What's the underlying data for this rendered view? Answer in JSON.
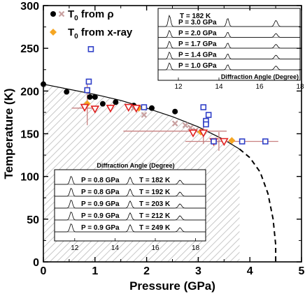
{
  "chart_data": {
    "type": "scatter",
    "xlabel": "Pressure (GPa)",
    "ylabel": "Temperature   (K)",
    "xlim": [
      0,
      5
    ],
    "ylim": [
      0,
      300
    ],
    "xticks": [
      "0",
      "1",
      "2",
      "3",
      "4",
      "5"
    ],
    "yticks": [
      "0",
      "50",
      "100",
      "150",
      "200",
      "250",
      "300"
    ],
    "legend": {
      "placement": "top-left",
      "entries": [
        {
          "label": "T",
          "sub": "0",
          "suffix": " from ρ",
          "markers": [
            "filled-circle",
            "x-cross"
          ]
        },
        {
          "label": "T",
          "sub": "0",
          "suffix": " from x-ray",
          "markers": [
            "diamond"
          ]
        }
      ]
    },
    "colors": {
      "circle": "#000000",
      "cross": "#c8a0a0",
      "diamond": "#f5a623",
      "square": "#3040c8",
      "triangle": "#e02020",
      "errorbar": "#c88080",
      "hatch": "#c8c8c8",
      "boundary": "#000000"
    },
    "series": [
      {
        "name": "T0 from rho (filled circle)",
        "marker": "circle",
        "points": [
          [
            0,
            208
          ],
          [
            0.45,
            199
          ],
          [
            0.9,
            193
          ],
          [
            1.0,
            193
          ],
          [
            1.15,
            185
          ],
          [
            1.4,
            187
          ],
          [
            1.75,
            183
          ],
          [
            2.1,
            180
          ],
          [
            2.55,
            176
          ]
        ]
      },
      {
        "name": "T0 from rho (cross)",
        "marker": "cross",
        "points": [
          [
            1.75,
            180
          ],
          [
            1.95,
            172
          ],
          [
            2.55,
            162
          ],
          [
            2.75,
            160
          ],
          [
            2.85,
            157
          ],
          [
            2.95,
            154
          ]
        ]
      },
      {
        "name": "T0 from x-ray (diamond)",
        "marker": "diamond",
        "points": [
          [
            0.85,
            185
          ],
          [
            1.85,
            180
          ],
          [
            3.05,
            152
          ],
          [
            3.65,
            142
          ]
        ]
      },
      {
        "name": "triangles",
        "marker": "triangle",
        "points": [
          [
            0.8,
            181
          ],
          [
            1.0,
            179
          ],
          [
            1.3,
            180
          ],
          [
            1.65,
            181
          ],
          [
            1.8,
            180
          ],
          [
            2.9,
            151
          ],
          [
            3.1,
            151
          ],
          [
            3.3,
            141
          ],
          [
            3.5,
            141
          ]
        ]
      },
      {
        "name": "squares",
        "marker": "square",
        "points": [
          [
            0.85,
            201
          ],
          [
            0.88,
            211
          ],
          [
            0.92,
            249
          ],
          [
            1.95,
            181
          ],
          [
            3.1,
            181
          ],
          [
            3.2,
            172
          ],
          [
            3.15,
            165
          ],
          [
            3.15,
            161
          ],
          [
            3.3,
            141
          ],
          [
            3.85,
            141
          ],
          [
            4.3,
            141
          ]
        ]
      }
    ],
    "errorbars": [
      {
        "x": 0.85,
        "y": 180,
        "xerr": [
          0.55,
          1.05
        ],
        "yerr": [
          160,
          210
        ]
      },
      {
        "x": 3.1,
        "y": 153,
        "xerr": [
          1.55,
          3.55
        ],
        "yerr": [
          138,
          167
        ]
      },
      {
        "x": 3.4,
        "y": 141,
        "xerr": [
          2.75,
          4.55
        ],
        "yerr": [
          130,
          152
        ]
      }
    ],
    "boundary_solid": [
      [
        0,
        208
      ],
      [
        0.5,
        202
      ],
      [
        1.0,
        196
      ],
      [
        1.5,
        189
      ],
      [
        2.0,
        180
      ],
      [
        2.5,
        170
      ],
      [
        3.0,
        158
      ],
      [
        3.5,
        143
      ],
      [
        3.8,
        132
      ]
    ],
    "boundary_dashed": [
      [
        3.8,
        132
      ],
      [
        4.0,
        122
      ],
      [
        4.2,
        105
      ],
      [
        4.35,
        80
      ],
      [
        4.45,
        50
      ],
      [
        4.5,
        20
      ],
      [
        4.5,
        0
      ]
    ],
    "inset_top": {
      "title": "Diffraction Angle (Degree)",
      "xlim": [
        11,
        18
      ],
      "xticks": [
        "12",
        "14",
        "16",
        "18"
      ],
      "temperature": "T = 182 K",
      "pressures": [
        "P = 3.0 GPa",
        "P = 2.0 GPa",
        "P = 1.7 GPa",
        "P = 1.4 GPa",
        "P = 1.0 GPa"
      ]
    },
    "inset_bottom": {
      "title": "Diffraction Angle (Degree)",
      "xlim": [
        11,
        18.5
      ],
      "xticks": [
        "12",
        "14",
        "16",
        "18"
      ],
      "rows": [
        {
          "p": "P = 0.8 GPa",
          "t": "T = 182 K"
        },
        {
          "p": "P = 0.8 GPa",
          "t": "T = 192 K"
        },
        {
          "p": "P = 0.9 GPa",
          "t": "T = 203 K"
        },
        {
          "p": "P = 0.9 GPa",
          "t": "T = 212 K"
        },
        {
          "p": "P = 0.9 GPa",
          "t": "T = 249 K"
        }
      ]
    }
  }
}
